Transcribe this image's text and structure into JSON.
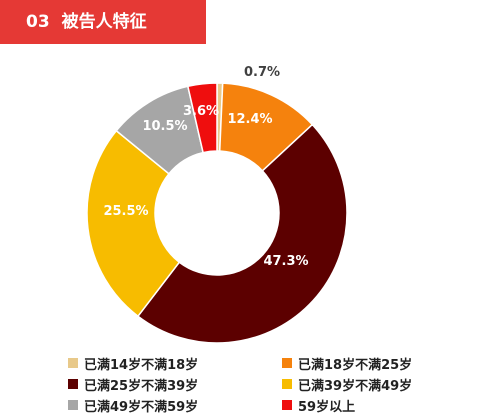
{
  "header": {
    "number": "03",
    "title": "被告人特征"
  },
  "colors": {
    "header_bg": "#e53935"
  },
  "chart_data": {
    "type": "pie",
    "donut": true,
    "title": "",
    "categories": [
      "已满14岁不满18岁",
      "已满18岁不满25岁",
      "已满25岁不满39岁",
      "已满39岁不满49岁",
      "已满49岁不满59岁",
      "59岁以上"
    ],
    "values": [
      0.7,
      12.4,
      47.3,
      25.5,
      10.5,
      3.6
    ],
    "labels": [
      "0.7%",
      "12.4%",
      "47.3%",
      "25.5%",
      "10.5%",
      "3.6%"
    ],
    "colors": [
      "#e8c98a",
      "#f5820d",
      "#5c0000",
      "#f7bc00",
      "#a6a6a6",
      "#ef0e0e"
    ],
    "label_colors": [
      "#404040",
      "#ffffff",
      "#ffffff",
      "#ffffff",
      "#ffffff",
      "#ffffff"
    ],
    "legend_position": "bottom"
  }
}
